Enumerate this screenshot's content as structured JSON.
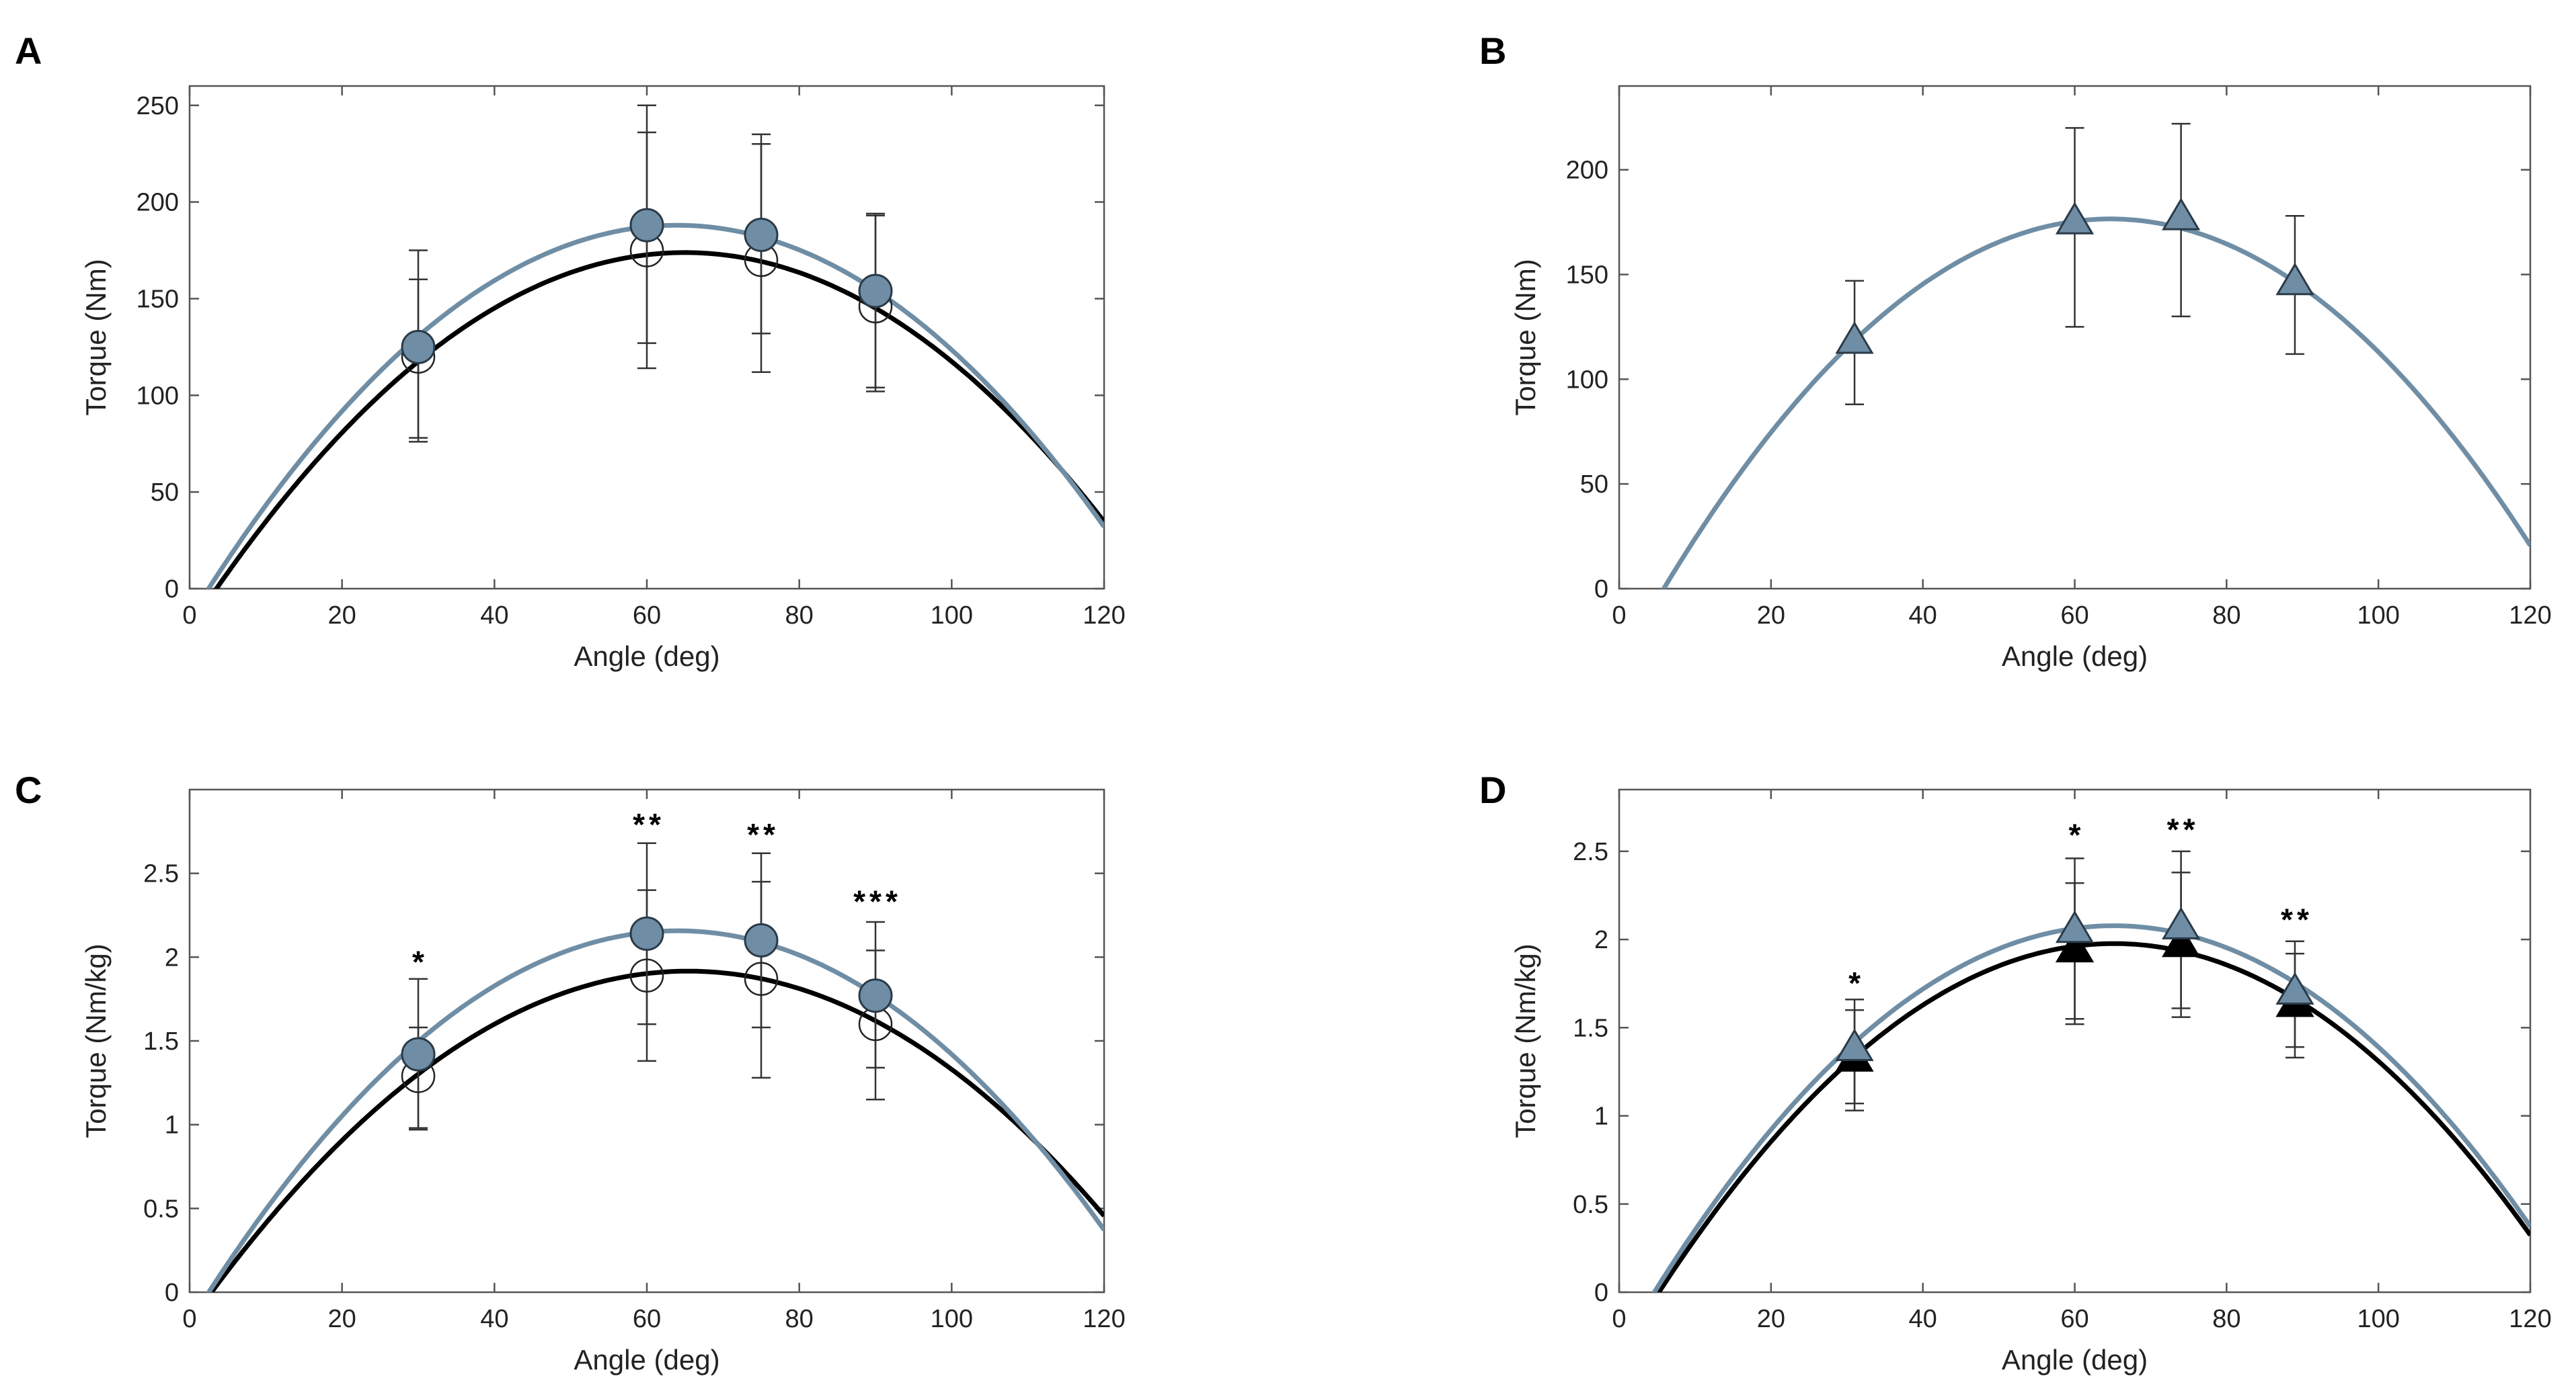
{
  "colors": {
    "gray": "#6f8ea5",
    "black": "#000000",
    "axis": "#555555",
    "err": "#333333"
  },
  "chart_data": [
    {
      "type": "line",
      "panel": "A",
      "xlabel": "Angle (deg)",
      "ylabel": "Torque (Nm)",
      "xlim": [
        0,
        120
      ],
      "ylim": [
        0,
        260
      ],
      "xticks": [
        "0",
        "20",
        "40",
        "60",
        "80",
        "100",
        "120"
      ],
      "yticks": [
        "0",
        "50",
        "100",
        "150",
        "200",
        "250"
      ],
      "series": [
        {
          "name": "filled",
          "curve": {
            "a": -0.0497,
            "b": 6.36,
            "c": -15.5
          },
          "color": "gray",
          "marker": "circle",
          "fill": true,
          "points": [
            {
              "x": 30,
              "y": 125,
              "lo": 78,
              "hi": 160
            },
            {
              "x": 60,
              "y": 188,
              "lo": 127,
              "hi": 250
            },
            {
              "x": 75,
              "y": 183,
              "lo": 132,
              "hi": 235
            },
            {
              "x": 90,
              "y": 154,
              "lo": 104,
              "hi": 193
            }
          ]
        },
        {
          "name": "open",
          "curve": {
            "a": -0.046,
            "b": 5.98,
            "c": -20.5
          },
          "color": "black",
          "marker": "circle",
          "fill": false,
          "points": [
            {
              "x": 30,
              "y": 120,
              "lo": 76,
              "hi": 175
            },
            {
              "x": 60,
              "y": 175,
              "lo": 114,
              "hi": 236
            },
            {
              "x": 75,
              "y": 170,
              "lo": 112,
              "hi": 230
            },
            {
              "x": 90,
              "y": 146,
              "lo": 102,
              "hi": 194
            }
          ]
        }
      ],
      "annotations": []
    },
    {
      "type": "line",
      "panel": "B",
      "xlabel": "Angle (deg)",
      "ylabel": "Torque (Nm)",
      "xlim": [
        0,
        120
      ],
      "ylim": [
        0,
        240
      ],
      "xticks": [
        "0",
        "20",
        "40",
        "60",
        "80",
        "100",
        "120"
      ],
      "yticks": [
        "0",
        "50",
        "100",
        "150",
        "200"
      ],
      "series": [
        {
          "name": "filled",
          "curve": {
            "a": -0.051,
            "b": 6.6,
            "c": -37.0
          },
          "color": "gray",
          "marker": "triangle",
          "fill": true,
          "points": [
            {
              "x": 31,
              "y": 118,
              "lo": 88,
              "hi": 147
            },
            {
              "x": 60,
              "y": 175,
              "lo": 125,
              "hi": 220
            },
            {
              "x": 74,
              "y": 177,
              "lo": 130,
              "hi": 222
            },
            {
              "x": 89,
              "y": 146,
              "lo": 112,
              "hi": 178
            }
          ]
        }
      ],
      "annotations": []
    },
    {
      "type": "line",
      "panel": "C",
      "xlabel": "Angle (deg)",
      "ylabel": "Torque (Nm/kg)",
      "xlim": [
        0,
        120
      ],
      "ylim": [
        0,
        3
      ],
      "xticks": [
        "0",
        "20",
        "40",
        "60",
        "80",
        "100",
        "120"
      ],
      "yticks": [
        "0",
        "0.5",
        "1",
        "1.5",
        "2",
        "2.5"
      ],
      "series": [
        {
          "name": "filled",
          "curve": {
            "a": -0.00057,
            "b": 0.073,
            "c": -0.18
          },
          "color": "gray",
          "marker": "circle",
          "fill": true,
          "points": [
            {
              "x": 30,
              "y": 1.42,
              "lo": 0.98,
              "hi": 1.87
            },
            {
              "x": 60,
              "y": 2.14,
              "lo": 1.6,
              "hi": 2.68
            },
            {
              "x": 75,
              "y": 2.1,
              "lo": 1.58,
              "hi": 2.62
            },
            {
              "x": 90,
              "y": 1.77,
              "lo": 1.34,
              "hi": 2.21
            }
          ]
        },
        {
          "name": "open",
          "curve": {
            "a": -0.00049,
            "b": 0.0641,
            "c": -0.18
          },
          "color": "black",
          "marker": "circle",
          "fill": false,
          "points": [
            {
              "x": 30,
              "y": 1.29,
              "lo": 0.97,
              "hi": 1.58
            },
            {
              "x": 60,
              "y": 1.89,
              "lo": 1.38,
              "hi": 2.4
            },
            {
              "x": 75,
              "y": 1.87,
              "lo": 1.28,
              "hi": 2.45
            },
            {
              "x": 90,
              "y": 1.6,
              "lo": 1.15,
              "hi": 2.04
            }
          ]
        }
      ],
      "annotations": [
        {
          "x": 30,
          "y": 1.98,
          "text": "*"
        },
        {
          "x": 60,
          "y": 2.8,
          "text": "**"
        },
        {
          "x": 75,
          "y": 2.74,
          "text": "**"
        },
        {
          "x": 90,
          "y": 2.34,
          "text": "***"
        }
      ]
    },
    {
      "type": "line",
      "panel": "D",
      "xlabel": "Angle (deg)",
      "ylabel": "Torque (Nm/kg)",
      "xlim": [
        0,
        120
      ],
      "ylim": [
        0,
        2.85
      ],
      "xticks": [
        "0",
        "20",
        "40",
        "60",
        "80",
        "100",
        "120"
      ],
      "yticks": [
        "0",
        "0.5",
        "1",
        "1.5",
        "2",
        "2.5"
      ],
      "series": [
        {
          "name": "filled",
          "curve": {
            "a": -0.000567,
            "b": 0.0739,
            "c": -0.33
          },
          "color": "gray",
          "marker": "triangle",
          "fill": true,
          "points": [
            {
              "x": 31,
              "y": 1.38,
              "lo": 1.07,
              "hi": 1.66
            },
            {
              "x": 60,
              "y": 2.05,
              "lo": 1.55,
              "hi": 2.46
            },
            {
              "x": 74,
              "y": 2.07,
              "lo": 1.61,
              "hi": 2.5
            },
            {
              "x": 89,
              "y": 1.7,
              "lo": 1.39,
              "hi": 1.99
            }
          ]
        },
        {
          "name": "open",
          "curve": {
            "a": -0.00055,
            "b": 0.0717,
            "c": -0.36
          },
          "color": "black",
          "marker": "triangle",
          "fill": true,
          "points": [
            {
              "x": 31,
              "y": 1.32,
              "lo": 1.03,
              "hi": 1.6
            },
            {
              "x": 60,
              "y": 1.94,
              "lo": 1.52,
              "hi": 2.32
            },
            {
              "x": 74,
              "y": 1.97,
              "lo": 1.56,
              "hi": 2.38
            },
            {
              "x": 89,
              "y": 1.63,
              "lo": 1.33,
              "hi": 1.92
            }
          ]
        }
      ],
      "annotations": [
        {
          "x": 31,
          "y": 1.76,
          "text": "*"
        },
        {
          "x": 60,
          "y": 2.6,
          "text": "*"
        },
        {
          "x": 74,
          "y": 2.63,
          "text": "**"
        },
        {
          "x": 89,
          "y": 2.12,
          "text": "**"
        }
      ]
    }
  ]
}
